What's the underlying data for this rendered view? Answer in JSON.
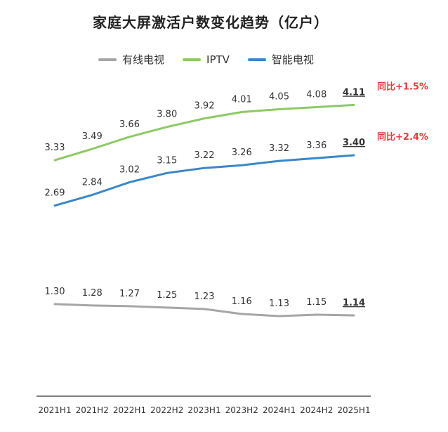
{
  "chart_data": {
    "type": "line",
    "title": "家庭大屏激活户数变化趋势（亿户）",
    "categories": [
      "2021H1",
      "2021H2",
      "2022H1",
      "2022H2",
      "2023H1",
      "2023H2",
      "2024H1",
      "2024H2",
      "2025H1"
    ],
    "series": [
      {
        "name": "有线电视",
        "color": "#a6a6a6",
        "values": [
          1.3,
          1.28,
          1.27,
          1.25,
          1.23,
          1.16,
          1.13,
          1.15,
          1.14
        ],
        "yoy": ""
      },
      {
        "name": "IPTV",
        "color": "#8dc965",
        "values": [
          3.33,
          3.49,
          3.66,
          3.8,
          3.92,
          4.01,
          4.05,
          4.08,
          4.11
        ],
        "yoy": "同比+1.5%"
      },
      {
        "name": "智能电视",
        "color": "#3a87c8",
        "values": [
          2.69,
          2.84,
          3.02,
          3.15,
          3.22,
          3.26,
          3.32,
          3.36,
          3.4
        ],
        "yoy": "同比+2.4%"
      }
    ],
    "legend_position": "top",
    "grid": false,
    "ylim": [
      0,
      4.6
    ]
  }
}
